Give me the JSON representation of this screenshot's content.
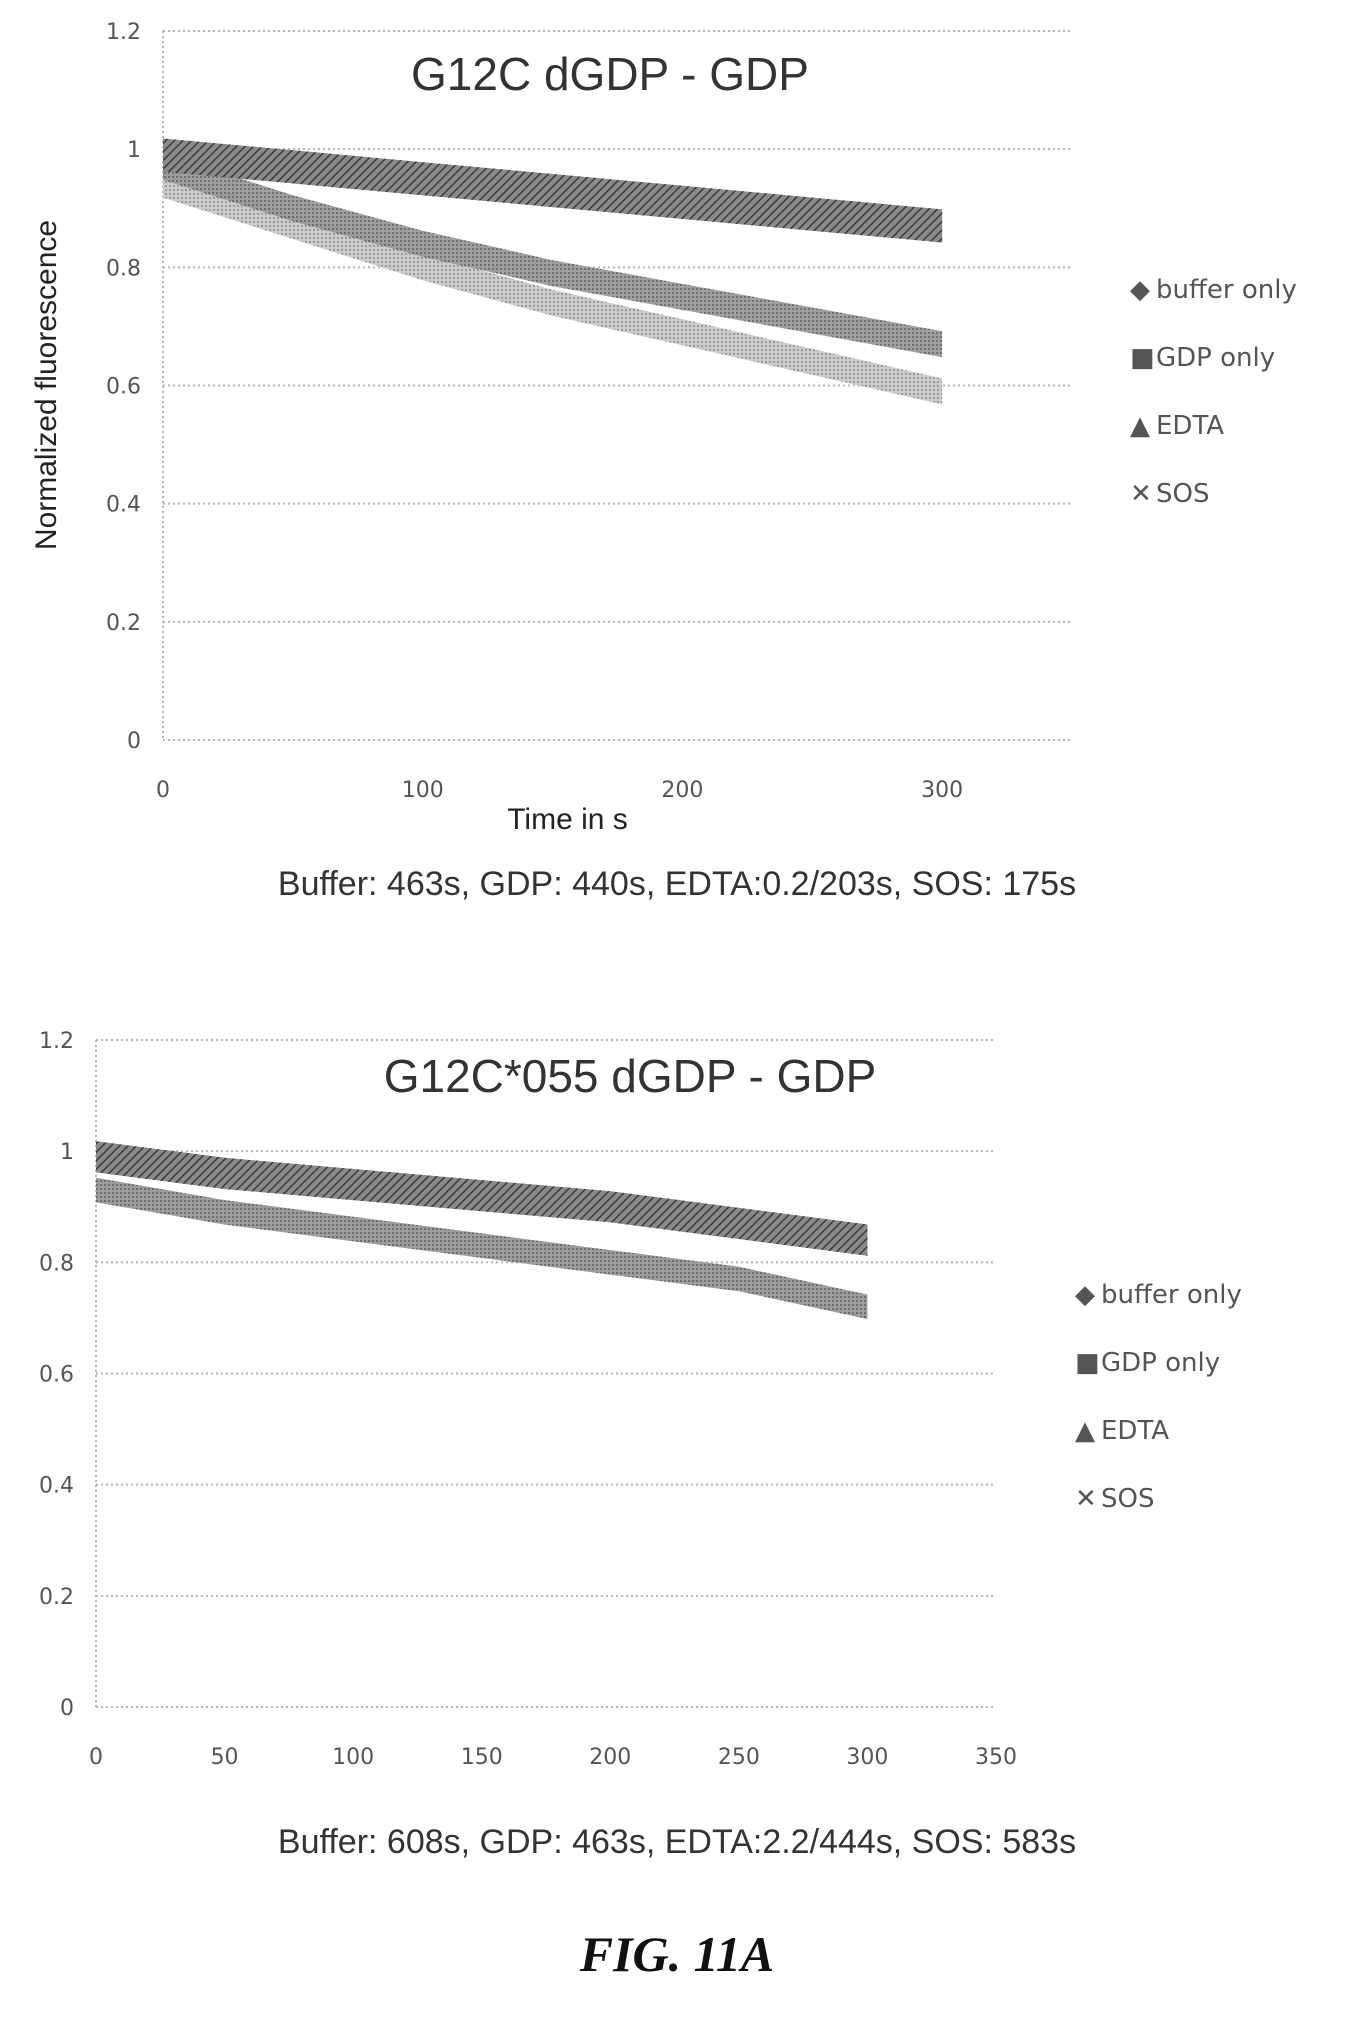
{
  "figure_label": "FIG. 11A",
  "chart_data": [
    {
      "type": "line",
      "title": "G12C dGDP - GDP",
      "xlabel": "Time in s",
      "ylabel": "Normalized fluorescence",
      "caption": "Buffer: 463s, GDP: 440s, EDTA:0.2/203s, SOS: 175s",
      "x_ticks": [
        "0",
        "100",
        "200",
        "300"
      ],
      "y_ticks": [
        "0",
        "0.2",
        "0.4",
        "0.6",
        "0.8",
        "1",
        "1.2"
      ],
      "xlim": [
        0,
        350
      ],
      "ylim": [
        0,
        1.2
      ],
      "grid": true,
      "legend_position": "right",
      "legend": [
        "buffer only",
        "GDP only",
        "EDTA",
        "SOS"
      ],
      "series": [
        {
          "name": "buffer only",
          "color": "#555555",
          "x": [
            0,
            50,
            100,
            150,
            200,
            250,
            300
          ],
          "y": [
            0.99,
            0.97,
            0.95,
            0.93,
            0.91,
            0.89,
            0.87
          ]
        },
        {
          "name": "GDP only",
          "color": "#444444",
          "x": [
            0,
            50,
            100,
            150,
            200,
            250,
            300
          ],
          "y": [
            0.99,
            0.97,
            0.95,
            0.93,
            0.91,
            0.89,
            0.87
          ]
        },
        {
          "name": "EDTA",
          "color": "#777777",
          "x": [
            0,
            50,
            100,
            150,
            200,
            250,
            300
          ],
          "y": [
            0.97,
            0.9,
            0.84,
            0.79,
            0.75,
            0.71,
            0.67
          ]
        },
        {
          "name": "SOS",
          "color": "#a8a8a8",
          "x": [
            0,
            50,
            100,
            150,
            200,
            250,
            300
          ],
          "y": [
            0.94,
            0.87,
            0.8,
            0.74,
            0.69,
            0.64,
            0.59
          ]
        }
      ]
    },
    {
      "type": "line",
      "title": "G12C*055 dGDP - GDP",
      "xlabel": "",
      "ylabel": "",
      "caption": "Buffer: 608s, GDP: 463s, EDTA:2.2/444s, SOS: 583s",
      "x_ticks": [
        "0",
        "50",
        "100",
        "150",
        "200",
        "250",
        "300",
        "350"
      ],
      "y_ticks": [
        "0",
        "0.2",
        "0.4",
        "0.6",
        "0.8",
        "1",
        "1.2"
      ],
      "xlim": [
        0,
        350
      ],
      "ylim": [
        0,
        1.2
      ],
      "grid": true,
      "legend_position": "right",
      "legend": [
        "buffer only",
        "GDP only",
        "EDTA",
        "SOS"
      ],
      "series": [
        {
          "name": "buffer only",
          "color": "#555555",
          "x": [
            0,
            50,
            100,
            150,
            200,
            250,
            300
          ],
          "y": [
            0.99,
            0.96,
            0.94,
            0.92,
            0.9,
            0.87,
            0.84
          ]
        },
        {
          "name": "GDP only",
          "color": "#444444",
          "x": [
            0,
            50,
            100,
            150,
            200,
            250,
            300
          ],
          "y": [
            0.99,
            0.96,
            0.94,
            0.92,
            0.9,
            0.87,
            0.84
          ]
        },
        {
          "name": "EDTA",
          "color": "#888888",
          "x": [
            0,
            50,
            100,
            150,
            200,
            250,
            300
          ],
          "y": [
            0.93,
            0.89,
            0.86,
            0.83,
            0.8,
            0.77,
            0.72
          ]
        },
        {
          "name": "SOS",
          "color": "#b0b0b0",
          "x": [
            0,
            50,
            100,
            150,
            200,
            250,
            300
          ],
          "y": [
            0.93,
            0.89,
            0.86,
            0.83,
            0.8,
            0.77,
            0.72
          ]
        }
      ]
    }
  ]
}
